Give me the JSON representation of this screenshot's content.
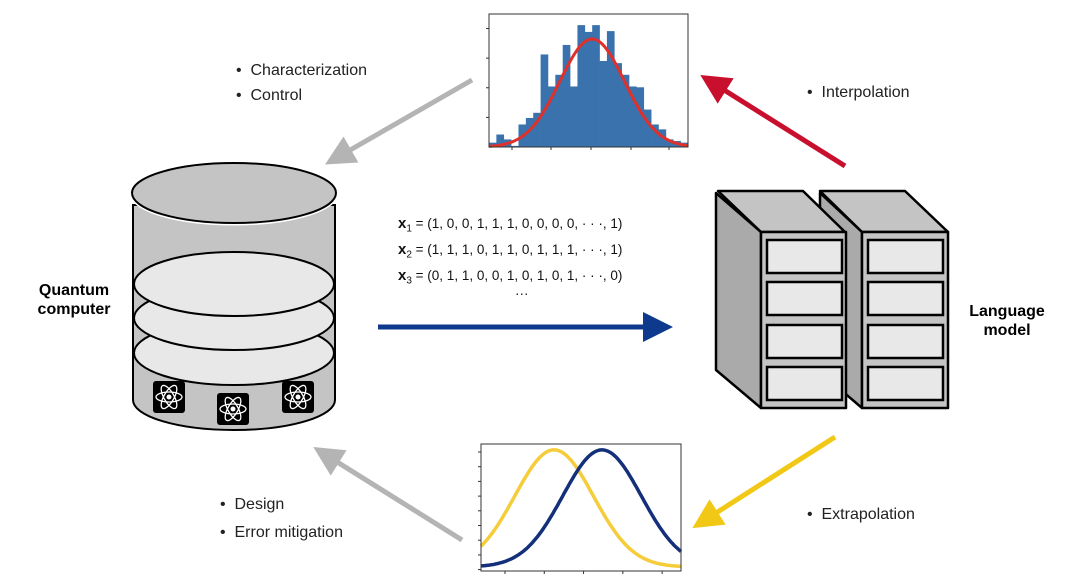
{
  "labels": {
    "top_left": [
      "Characterization",
      "Control"
    ],
    "top_right": [
      "Interpolation"
    ],
    "bottom_left": [
      "Design",
      "Error mitigation"
    ],
    "bottom_right": [
      "Extrapolation"
    ],
    "bullet": "•",
    "quantum_computer": "Quantum computer",
    "language_model": "Language model"
  },
  "equations": [
    {
      "var": "x",
      "sub": "1",
      "value": "= (1, 0, 0, 1, 1, 1, 0, 0, 0, 0, · · ·, 1)"
    },
    {
      "var": "x",
      "sub": "2",
      "value": "= (1, 1, 1, 0, 1, 1, 0, 1, 1, 1, · · ·, 1)"
    },
    {
      "var": "x",
      "sub": "3",
      "value": "= (0, 1, 1, 0, 0, 1, 0, 1, 0, 1, · · ·, 0)"
    }
  ],
  "ellipsis": "···",
  "colors": {
    "hist_bar": "#3a72ad",
    "fit_curve": "#e0302a",
    "arrow_gray": "#b4b4b4",
    "arrow_red": "#c8102e",
    "arrow_blue": "#0d3a8c",
    "arrow_yellow": "#f2c816",
    "curve_yellow": "#f5cc3a",
    "curve_navy": "#14307a"
  },
  "chart_data": [
    {
      "type": "bar",
      "values": [
        0.16,
        0.46,
        0.28,
        0.04,
        0.83,
        1.07,
        1.26,
        3.41,
        2.23,
        2.66,
        3.76,
        2.23,
        4.49,
        4.24,
        4.49,
        3.17,
        4.27,
        3.09,
        2.66,
        2.23,
        2.2,
        1.38,
        0.83,
        0.65,
        0.28,
        0.22,
        0.16
      ],
      "fit": {
        "type": "gaussian",
        "mean": 14,
        "sigma": 4.4,
        "peak": 3.98
      },
      "ylim": [
        0,
        4.9
      ]
    },
    {
      "type": "line",
      "xlim": [
        0.39,
        5.48
      ],
      "ylim": [
        0,
        1.05
      ],
      "series": [
        {
          "color": "#f5cc3a",
          "mean": 2.25,
          "sigma": 1.0
        },
        {
          "color": "#14307a",
          "mean": 3.47,
          "sigma": 1.0
        }
      ]
    }
  ]
}
